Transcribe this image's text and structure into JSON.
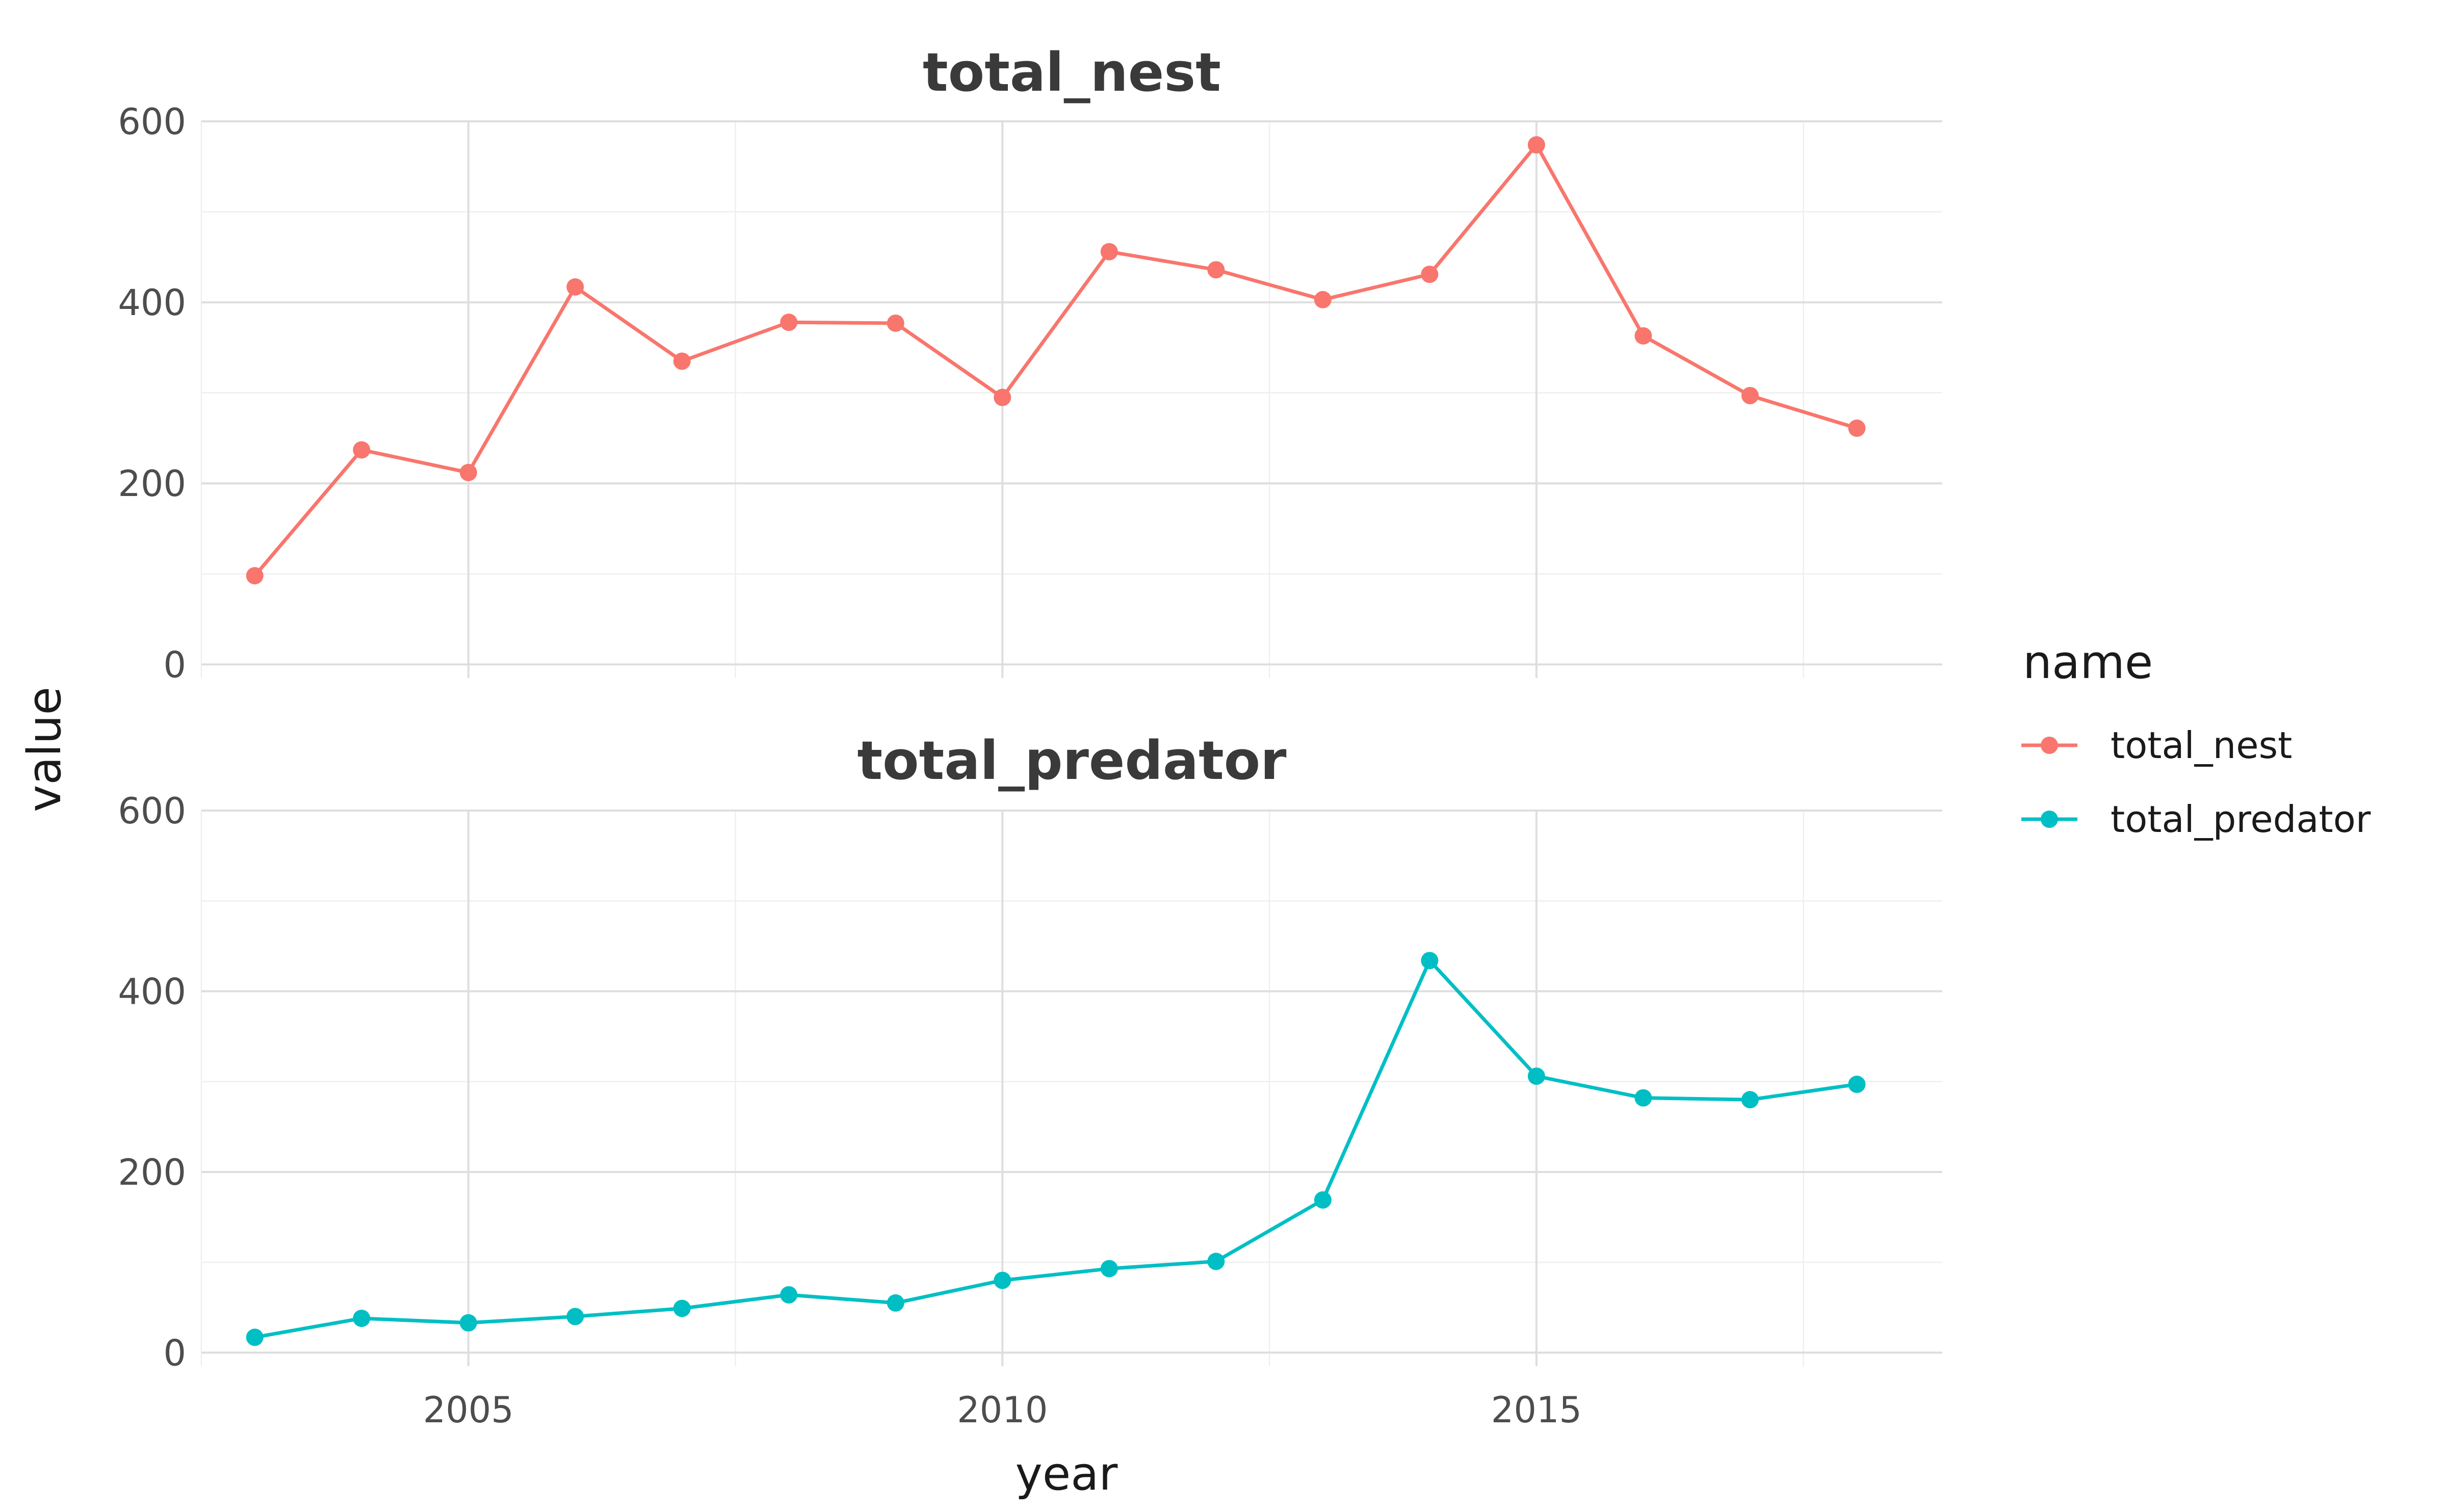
{
  "chart_data": {
    "type": "line",
    "xlabel": "year",
    "ylabel": "value",
    "legend": {
      "title": "name",
      "position": "right"
    },
    "x": [
      2003,
      2004,
      2005,
      2006,
      2007,
      2008,
      2009,
      2010,
      2011,
      2012,
      2013,
      2014,
      2015,
      2016,
      2017,
      2018
    ],
    "xlim": [
      2002.5,
      2018.8
    ],
    "x_ticks": [
      2005,
      2010,
      2015
    ],
    "ylim": [
      -15,
      600
    ],
    "y_ticks": [
      0,
      200,
      400,
      600
    ],
    "grid": true,
    "facets": [
      {
        "title": "total_nest",
        "series": "total_nest"
      },
      {
        "title": "total_predator",
        "series": "total_predator"
      }
    ],
    "series": [
      {
        "name": "total_nest",
        "color": "#F8766D",
        "values": [
          98,
          237,
          212,
          417,
          335,
          378,
          377,
          295,
          456,
          436,
          403,
          431,
          574,
          363,
          297,
          261
        ]
      },
      {
        "name": "total_predator",
        "color": "#00BFC4",
        "values": [
          17,
          38,
          33,
          40,
          49,
          64,
          55,
          80,
          93,
          101,
          169,
          434,
          306,
          282,
          280,
          297
        ]
      }
    ]
  }
}
